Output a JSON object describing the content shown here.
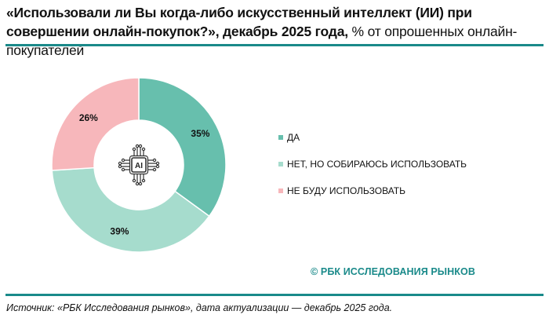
{
  "header": {
    "title_bold": "«Использовали ли Вы когда-либо искусственный интеллект (ИИ) при совершении онлайн-покупок?», декабрь 2025 года,",
    "title_normal": " % от опрошенных онлайн-покупателей"
  },
  "colors": {
    "rule": "#1a8a8a",
    "yes": "#67bfad",
    "not_yet": "#a6dccd",
    "no": "#f7b7bb",
    "brand": "#1a8a8a"
  },
  "chart_data": {
    "type": "pie",
    "variant": "donut",
    "title": "«Использовали ли Вы когда-либо искусственный интеллект (ИИ) при совершении онлайн-покупок?», декабрь 2025 года, % от опрошенных онлайн-покупателей",
    "categories": [
      "ДА",
      "НЕТ, НО СОБИРАЮСЬ ИСПОЛЬЗОВАТЬ",
      "НЕ БУДУ ИСПОЛЬЗОВАТЬ"
    ],
    "values": [
      35,
      39,
      26
    ],
    "labels": [
      "35%",
      "39%",
      "26%"
    ],
    "colors": [
      "#67bfad",
      "#a6dccd",
      "#f7b7bb"
    ],
    "unit": "%",
    "legend_position": "right",
    "center_icon": "AI"
  },
  "center_icon": {
    "text": "AI"
  },
  "legend": {
    "items": [
      {
        "label": "ДА",
        "color": "#67bfad"
      },
      {
        "label": "НЕТ, НО СОБИРАЮСЬ ИСПОЛЬЗОВАТЬ",
        "color": "#a6dccd"
      },
      {
        "label": "НЕ БУДУ ИСПОЛЬЗОВАТЬ",
        "color": "#f7b7bb"
      }
    ]
  },
  "brand": {
    "text": "© РБК ИССЛЕДОВАНИЯ РЫНКОВ"
  },
  "footer": {
    "source": "Источник: «РБК Исследования рынков», дата актуализации — декабрь 2025 года."
  }
}
